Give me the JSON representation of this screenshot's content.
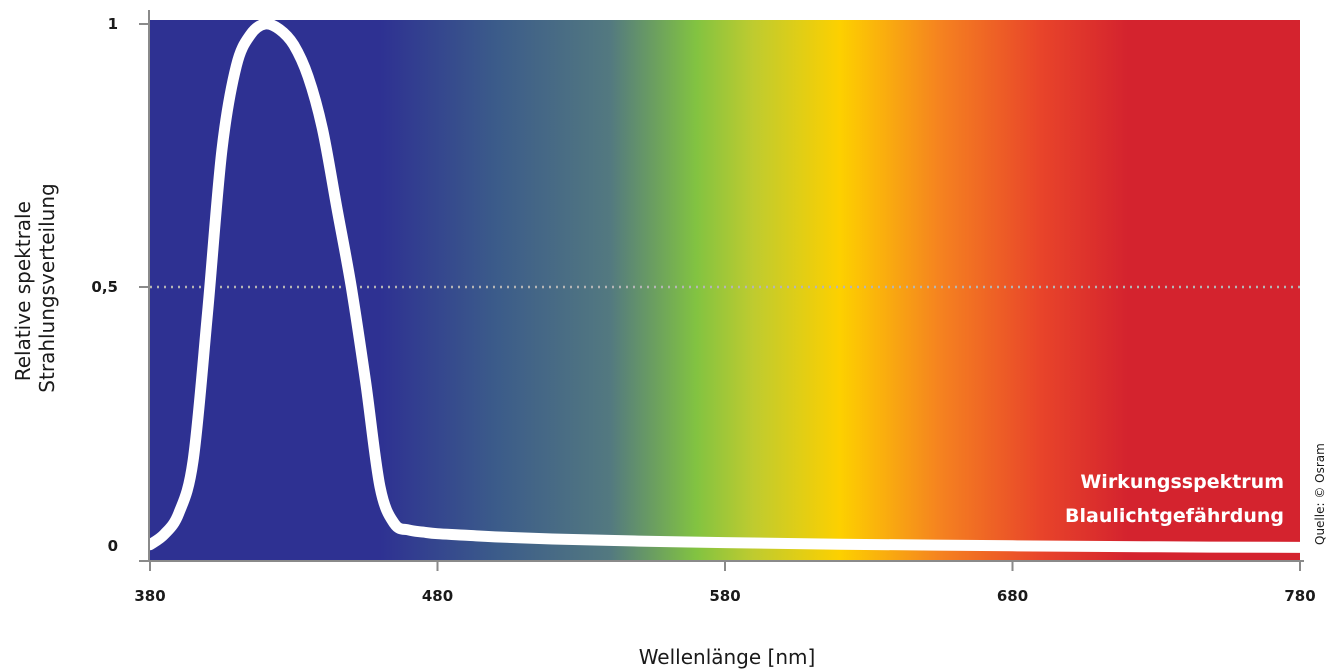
{
  "chart_data": {
    "type": "line",
    "xlabel": "Wellenlänge [nm]",
    "ylabel_lines": [
      "Relative spektrale",
      "Strahlungsverteilung"
    ],
    "xlim": [
      380,
      780
    ],
    "ylim": [
      0,
      1
    ],
    "x_ticks": [
      380,
      480,
      580,
      680,
      780
    ],
    "x_tick_labels": [
      "380",
      "480",
      "580",
      "680",
      "780"
    ],
    "y_ticks": [
      0,
      0.5,
      1
    ],
    "y_tick_labels": [
      "0",
      "0,5",
      "1"
    ],
    "gridline": {
      "y": 0.5,
      "style": "dotted"
    },
    "background": "visible spectrum gradient",
    "spectrum_colors": [
      {
        "wavelength": 380,
        "color": "#2e3192"
      },
      {
        "wavelength": 460,
        "color": "#2e3192"
      },
      {
        "wavelength": 500,
        "color": "#3b5b8a"
      },
      {
        "wavelength": 540,
        "color": "#537980"
      },
      {
        "wavelength": 570,
        "color": "#82c341"
      },
      {
        "wavelength": 590,
        "color": "#bfcb2f"
      },
      {
        "wavelength": 620,
        "color": "#fdd000"
      },
      {
        "wavelength": 655,
        "color": "#f58220"
      },
      {
        "wavelength": 690,
        "color": "#e8442a"
      },
      {
        "wavelength": 720,
        "color": "#d4232e"
      },
      {
        "wavelength": 780,
        "color": "#d4232e"
      }
    ],
    "series": [
      {
        "color": "#ffffff",
        "x": [
          380,
          385,
          390,
          395,
          400,
          405,
          410,
          415,
          420,
          425,
          430,
          435,
          440,
          445,
          450,
          455,
          460,
          465,
          470,
          475,
          480,
          490,
          500,
          520,
          550,
          580,
          620,
          680,
          730,
          780
        ],
        "y": [
          0.01,
          0.03,
          0.07,
          0.17,
          0.45,
          0.76,
          0.92,
          0.98,
          1.0,
          0.99,
          0.96,
          0.9,
          0.8,
          0.65,
          0.5,
          0.32,
          0.12,
          0.05,
          0.038,
          0.034,
          0.031,
          0.028,
          0.025,
          0.021,
          0.017,
          0.014,
          0.011,
          0.008,
          0.006,
          0.005
        ]
      }
    ],
    "annotation": [
      "Wirkungsspektrum",
      "Blaulichtgefährdung"
    ],
    "source": "Quelle: © Osram"
  }
}
